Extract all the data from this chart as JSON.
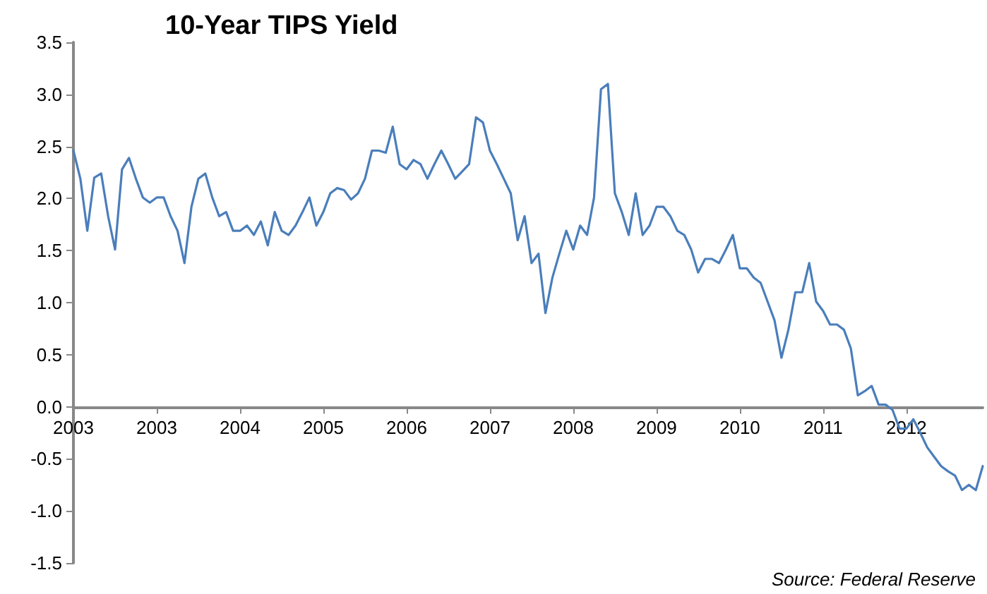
{
  "chart_data": {
    "type": "line",
    "title": "10-Year TIPS Yield",
    "annotations": [
      "Source: Federal Reserve"
    ],
    "categories": [
      "2003",
      null,
      null,
      null,
      null,
      null,
      null,
      null,
      null,
      null,
      null,
      null,
      "2003",
      null,
      null,
      null,
      null,
      null,
      null,
      null,
      null,
      null,
      null,
      null,
      "2004",
      null,
      null,
      null,
      null,
      null,
      null,
      null,
      null,
      null,
      null,
      null,
      "2005",
      null,
      null,
      null,
      null,
      null,
      null,
      null,
      null,
      null,
      null,
      null,
      "2006",
      null,
      null,
      null,
      null,
      null,
      null,
      null,
      null,
      null,
      null,
      null,
      "2007",
      null,
      null,
      null,
      null,
      null,
      null,
      null,
      null,
      null,
      null,
      null,
      "2008",
      null,
      null,
      null,
      null,
      null,
      null,
      null,
      null,
      null,
      null,
      null,
      "2009",
      null,
      null,
      null,
      null,
      null,
      null,
      null,
      null,
      null,
      null,
      null,
      "2010",
      null,
      null,
      null,
      null,
      null,
      null,
      null,
      null,
      null,
      null,
      null,
      "2011",
      null,
      null,
      null,
      null,
      null,
      null,
      null,
      null,
      null,
      null,
      null,
      "2012",
      null,
      null,
      null,
      null,
      null,
      null,
      null,
      null,
      null,
      null,
      null
    ],
    "series": [
      {
        "color": "#4a7ebb",
        "values": [
          2.46,
          2.19,
          1.69,
          2.2,
          2.24,
          1.83,
          1.51,
          2.28,
          2.39,
          2.19,
          2.01,
          1.96,
          2.01,
          2.01,
          1.83,
          1.69,
          1.38,
          1.92,
          2.19,
          2.24,
          2.01,
          1.83,
          1.87,
          1.69,
          1.69,
          1.74,
          1.65,
          1.78,
          1.55,
          1.87,
          1.69,
          1.65,
          1.74,
          1.87,
          2.01,
          1.74,
          1.87,
          2.05,
          2.1,
          2.08,
          1.99,
          2.05,
          2.19,
          2.46,
          2.46,
          2.44,
          2.69,
          2.33,
          2.28,
          2.37,
          2.33,
          2.19,
          2.33,
          2.46,
          2.33,
          2.19,
          2.26,
          2.33,
          2.78,
          2.73,
          2.46,
          2.33,
          2.19,
          2.05,
          1.6,
          1.83,
          1.38,
          1.47,
          0.9,
          1.24,
          1.47,
          1.69,
          1.51,
          1.74,
          1.65,
          2.01,
          3.05,
          3.1,
          2.05,
          1.87,
          1.65,
          2.05,
          1.65,
          1.74,
          1.92,
          1.92,
          1.83,
          1.69,
          1.65,
          1.51,
          1.29,
          1.42,
          1.42,
          1.38,
          1.51,
          1.65,
          1.33,
          1.33,
          1.24,
          1.19,
          1.01,
          0.83,
          0.47,
          0.74,
          1.1,
          1.1,
          1.38,
          1.01,
          0.92,
          0.79,
          0.79,
          0.74,
          0.56,
          0.11,
          0.15,
          0.2,
          0.02,
          0.02,
          -0.03,
          -0.21,
          -0.21,
          -0.12,
          -0.25,
          -0.39,
          -0.48,
          -0.57,
          -0.62,
          -0.66,
          -0.8,
          -0.75,
          -0.8,
          -0.57
        ]
      }
    ],
    "ylim": [
      -1.5,
      3.5
    ],
    "yticks": [
      {
        "value": -1.5,
        "label": "-1.5"
      },
      {
        "value": -1,
        "label": "-1.0"
      },
      {
        "value": -0.5,
        "label": "-0.5"
      },
      {
        "value": 0,
        "label": "0.0"
      },
      {
        "value": 0.5,
        "label": "0.5"
      },
      {
        "value": 1,
        "label": "1.0"
      },
      {
        "value": 1.5,
        "label": "1.5"
      },
      {
        "value": 2,
        "label": "2.0"
      },
      {
        "value": 2.5,
        "label": "2.5"
      },
      {
        "value": 3,
        "label": "3.0"
      },
      {
        "value": 3.5,
        "label": "3.5"
      }
    ],
    "grid": false,
    "marker": "none",
    "line_style": "solid"
  }
}
